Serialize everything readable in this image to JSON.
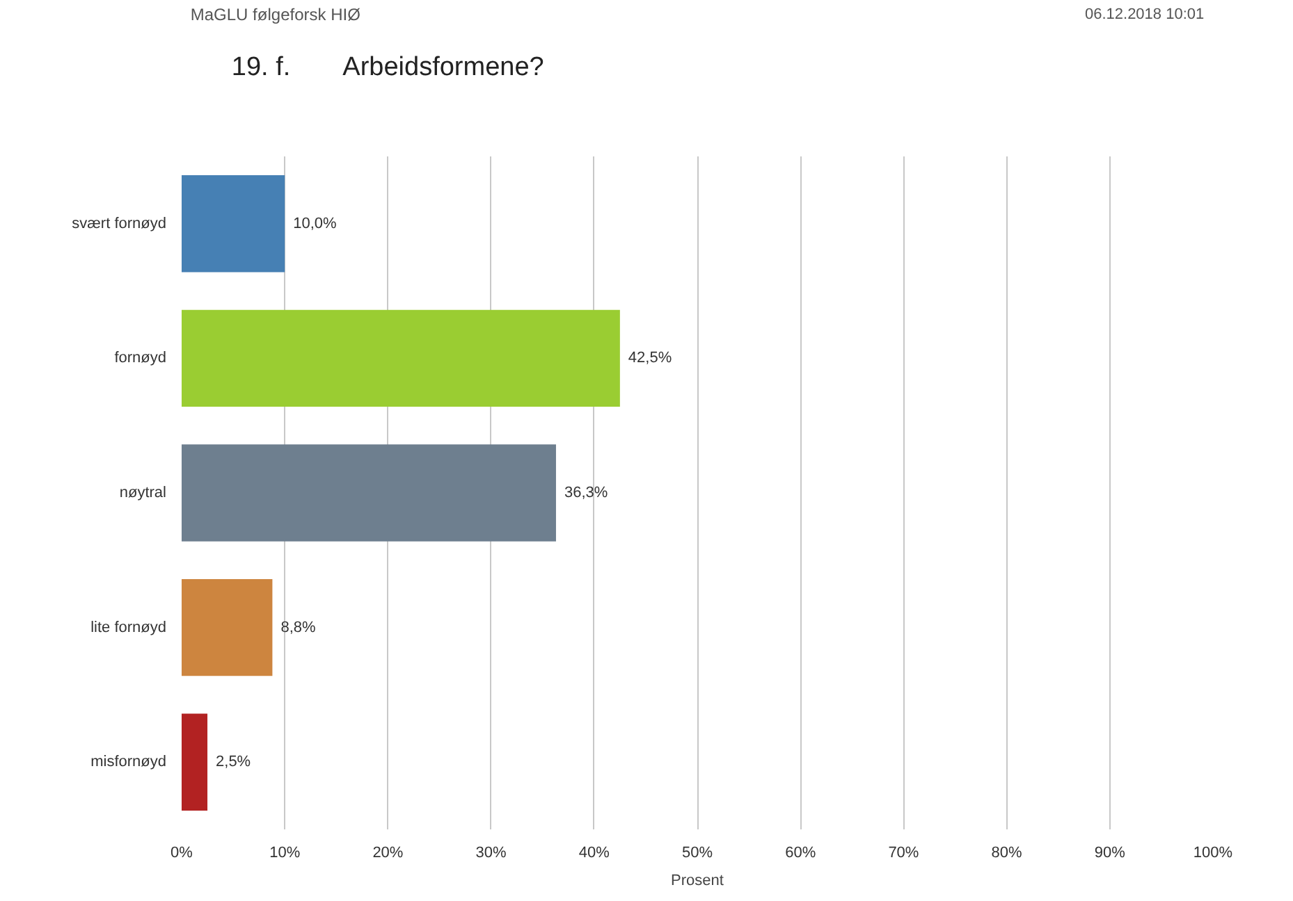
{
  "chart_data": {
    "type": "bar",
    "orientation": "horizontal",
    "title": "Arbeidsformene?",
    "xlabel": "Prosent",
    "annotations": [
      "MaGLU følgeforsk HIØ",
      "06.12.2018 10:01",
      "19. f."
    ],
    "categories": [
      "svært fornøyd",
      "fornøyd",
      "nøytral",
      "lite fornøyd",
      "misfornøyd"
    ],
    "values": [
      10.0,
      42.5,
      36.3,
      8.8,
      2.5
    ],
    "colors": [
      "#4680b4",
      "#9acd32",
      "#6e7f8f",
      "#cd853f",
      "#b22222"
    ],
    "value_labels": [
      "10,0%",
      "42,5%",
      "36,3%",
      "8,8%",
      "2,5%"
    ],
    "xlim": [
      0,
      100
    ],
    "xticks": [
      {
        "value": 0,
        "label": "0%"
      },
      {
        "value": 10,
        "label": "10%"
      },
      {
        "value": 20,
        "label": "20%"
      },
      {
        "value": 30,
        "label": "30%"
      },
      {
        "value": 40,
        "label": "40%"
      },
      {
        "value": 50,
        "label": "50%"
      },
      {
        "value": 60,
        "label": "60%"
      },
      {
        "value": 70,
        "label": "70%"
      },
      {
        "value": 80,
        "label": "80%"
      },
      {
        "value": 90,
        "label": "90%"
      },
      {
        "value": 100,
        "label": "100%"
      }
    ],
    "grid": "x"
  }
}
